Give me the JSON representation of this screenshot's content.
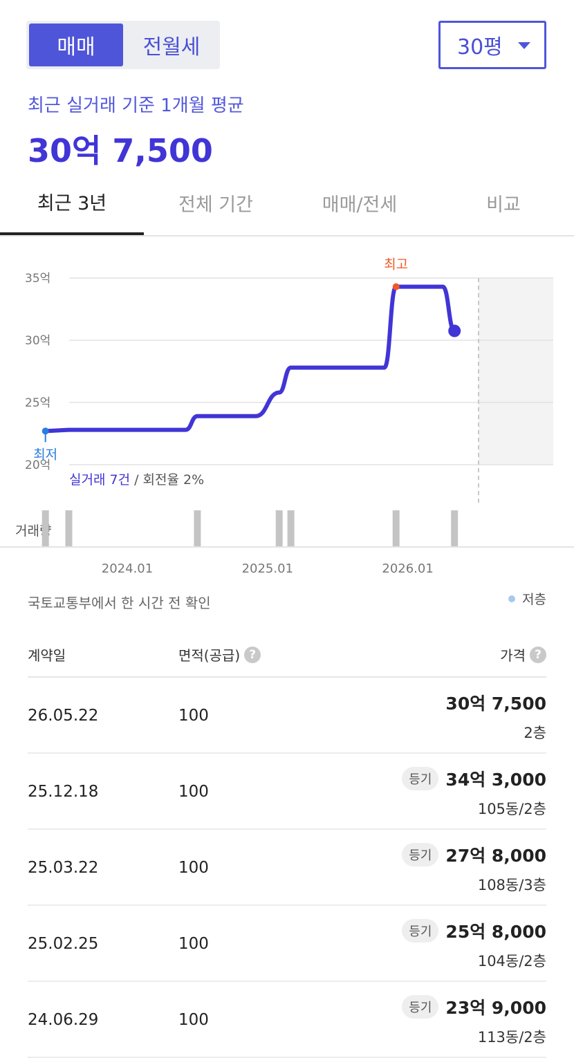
{
  "segment": {
    "sale": "매매",
    "rent": "전월세"
  },
  "size_select": {
    "value": "30평"
  },
  "summary": {
    "label": "최근 실거래 기준 1개월 평균",
    "value": "30억 7,500"
  },
  "tabs": [
    "최근 3년",
    "전체 기간",
    "매매/전세",
    "비교"
  ],
  "chart_data": {
    "type": "line",
    "y_ticks": [
      "35억",
      "30억",
      "25억",
      "20억"
    ],
    "ylim": [
      20,
      35
    ],
    "x_ticks": [
      "2024.01",
      "2025.01",
      "2026.01"
    ],
    "series": [
      {
        "x": [
          "2023.06",
          "2023.08",
          "2024.06",
          "2024.07",
          "2024.12",
          "2025.02",
          "2025.03",
          "2025.11",
          "2025.12",
          "2026.04",
          "2026.05"
        ],
        "values": [
          22.7,
          22.8,
          22.8,
          23.9,
          23.9,
          25.8,
          27.8,
          27.8,
          34.3,
          34.3,
          30.75
        ]
      }
    ],
    "low_label": "최저",
    "high_label": "최고",
    "summary_count": "실거래 7건",
    "summary_rest": " / 회전율 2%",
    "volume_label": "거래량",
    "volume_months": [
      "2023.06",
      "2023.08",
      "2024.07",
      "2025.02",
      "2025.03",
      "2025.12",
      "2026.05"
    ]
  },
  "source_note": "국토교통부에서 한 시간 전 확인",
  "legend": {
    "low_floor": "저층"
  },
  "table": {
    "headers": {
      "date": "계약일",
      "area": "면적(공급)",
      "price": "가격"
    },
    "rows": [
      {
        "date": "26.05.22",
        "area": "100",
        "badge": "",
        "price": "30억 7,500",
        "floor": "2층"
      },
      {
        "date": "25.12.18",
        "area": "100",
        "badge": "등기",
        "price": "34억 3,000",
        "floor": "105동/2층"
      },
      {
        "date": "25.03.22",
        "area": "100",
        "badge": "등기",
        "price": "27억 8,000",
        "floor": "108동/3층"
      },
      {
        "date": "25.02.25",
        "area": "100",
        "badge": "등기",
        "price": "25억 8,000",
        "floor": "104동/2층"
      },
      {
        "date": "24.06.29",
        "area": "100",
        "badge": "등기",
        "price": "23억 9,000",
        "floor": "113동/2층"
      }
    ]
  },
  "colors": {
    "accent": "#4f55d9",
    "line": "#4135d6",
    "high": "#f05a28",
    "low": "#2a7de1"
  }
}
